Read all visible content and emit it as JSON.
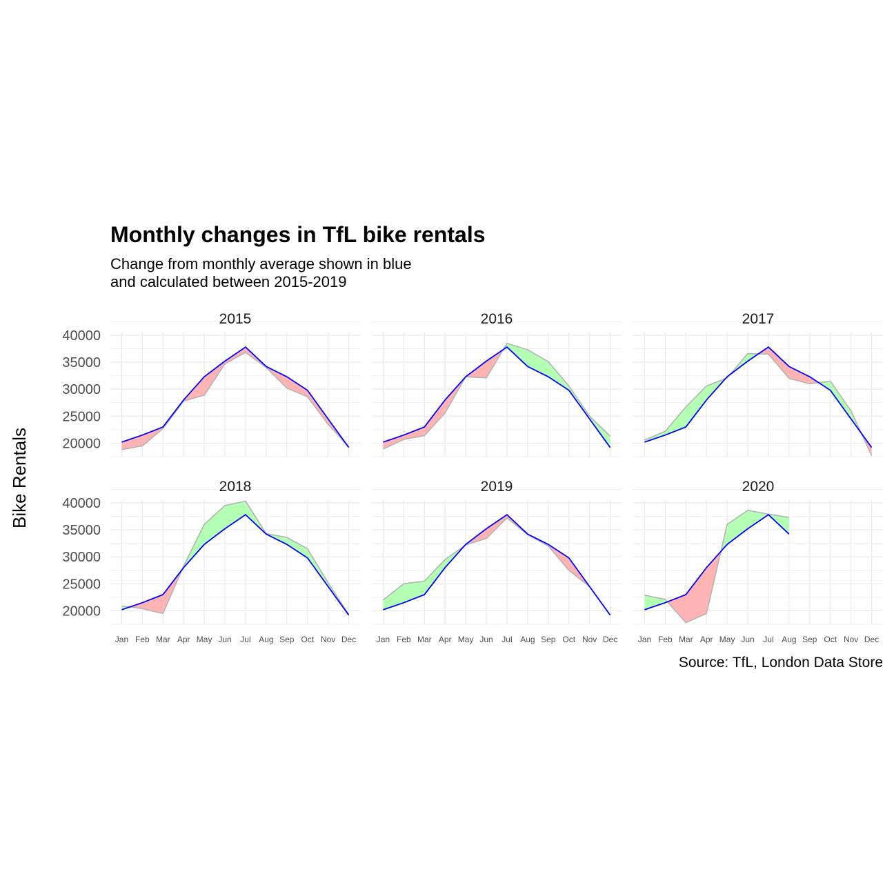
{
  "header": {
    "title": "Monthly changes in TfL bike rentals",
    "subtitle_line1": "Change from monthly average shown in blue",
    "subtitle_line2": "and calculated between 2015-2019"
  },
  "caption": "Source: TfL, London Data Store",
  "colors": {
    "average_line": "#0000ff",
    "actual_line": "#b3b3b3",
    "above_fill": "#b3ffb3",
    "below_fill": "#ffb3b3",
    "grid": "#ebebeb"
  },
  "chart_data": {
    "type": "line",
    "facet_by": "year",
    "ylabel": "Bike Rentals",
    "ylim": [
      17500,
      40500
    ],
    "yticks": [
      20000,
      25000,
      30000,
      35000,
      40000
    ],
    "months": [
      "Jan",
      "Feb",
      "Mar",
      "Apr",
      "May",
      "Jun",
      "Jul",
      "Aug",
      "Sep",
      "Oct",
      "Nov",
      "Dec"
    ],
    "average": [
      20200,
      21500,
      23000,
      28000,
      32300,
      35200,
      37800,
      34200,
      32300,
      29800,
      24500,
      19200
    ],
    "facets": [
      {
        "year": "2015",
        "actual": [
          18800,
          19500,
          22700,
          27800,
          28900,
          34700,
          36800,
          34000,
          30200,
          28600,
          23500,
          19300
        ]
      },
      {
        "year": "2016",
        "actual": [
          18900,
          20700,
          21400,
          25600,
          32300,
          32100,
          38500,
          37300,
          35100,
          30600,
          25000,
          21300
        ]
      },
      {
        "year": "2017",
        "actual": [
          20600,
          22200,
          26700,
          30600,
          32100,
          36600,
          36500,
          32000,
          31000,
          31500,
          26000,
          17700
        ]
      },
      {
        "year": "2018",
        "actual": [
          20900,
          20400,
          19500,
          28300,
          36000,
          39500,
          40300,
          34300,
          33600,
          31500,
          25200,
          19300
        ]
      },
      {
        "year": "2019",
        "actual": [
          22000,
          25000,
          25500,
          29500,
          32200,
          33400,
          37200,
          34100,
          32000,
          27500,
          24500,
          19200
        ]
      },
      {
        "year": "2020",
        "actual": [
          22900,
          22100,
          17800,
          19500,
          36000,
          38600,
          37900,
          37300
        ]
      }
    ]
  }
}
